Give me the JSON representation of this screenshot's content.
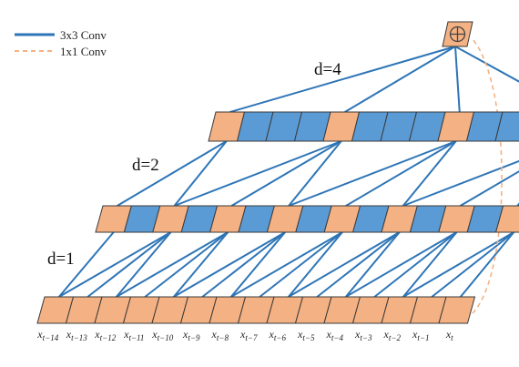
{
  "legend": {
    "conv3": {
      "label": "3x3 Conv",
      "color": "#2e75b6"
    },
    "conv1": {
      "label": "1x1 Conv",
      "color": "#f4b183"
    }
  },
  "colors": {
    "orange": "#f4b183",
    "blue": "#5b9bd5",
    "border": "#3a3a3a",
    "line": "#2e75b6",
    "dashed": "#f4b183"
  },
  "icons": {
    "sum": "circled-plus-icon"
  },
  "dilations": [
    {
      "label": "d=1"
    },
    {
      "label": "d=2"
    },
    {
      "label": "d=4"
    }
  ],
  "inputs": [
    {
      "base": "x",
      "sub": "t−14"
    },
    {
      "base": "x",
      "sub": "t−13"
    },
    {
      "base": "x",
      "sub": "t−12"
    },
    {
      "base": "x",
      "sub": "t−11"
    },
    {
      "base": "x",
      "sub": "t−10"
    },
    {
      "base": "x",
      "sub": "t−9"
    },
    {
      "base": "x",
      "sub": "t−8"
    },
    {
      "base": "x",
      "sub": "t−7"
    },
    {
      "base": "x",
      "sub": "t−6"
    },
    {
      "base": "x",
      "sub": "t−5"
    },
    {
      "base": "x",
      "sub": "t−4"
    },
    {
      "base": "x",
      "sub": "t−3"
    },
    {
      "base": "x",
      "sub": "t−2"
    },
    {
      "base": "x",
      "sub": "t−1"
    },
    {
      "base": "x",
      "sub": "t"
    }
  ],
  "layers": [
    {
      "pattern": "ooooooooooooooo"
    },
    {
      "pattern": "obobobobobobobo"
    },
    {
      "pattern": "obbbobbbobbbo"
    }
  ]
}
